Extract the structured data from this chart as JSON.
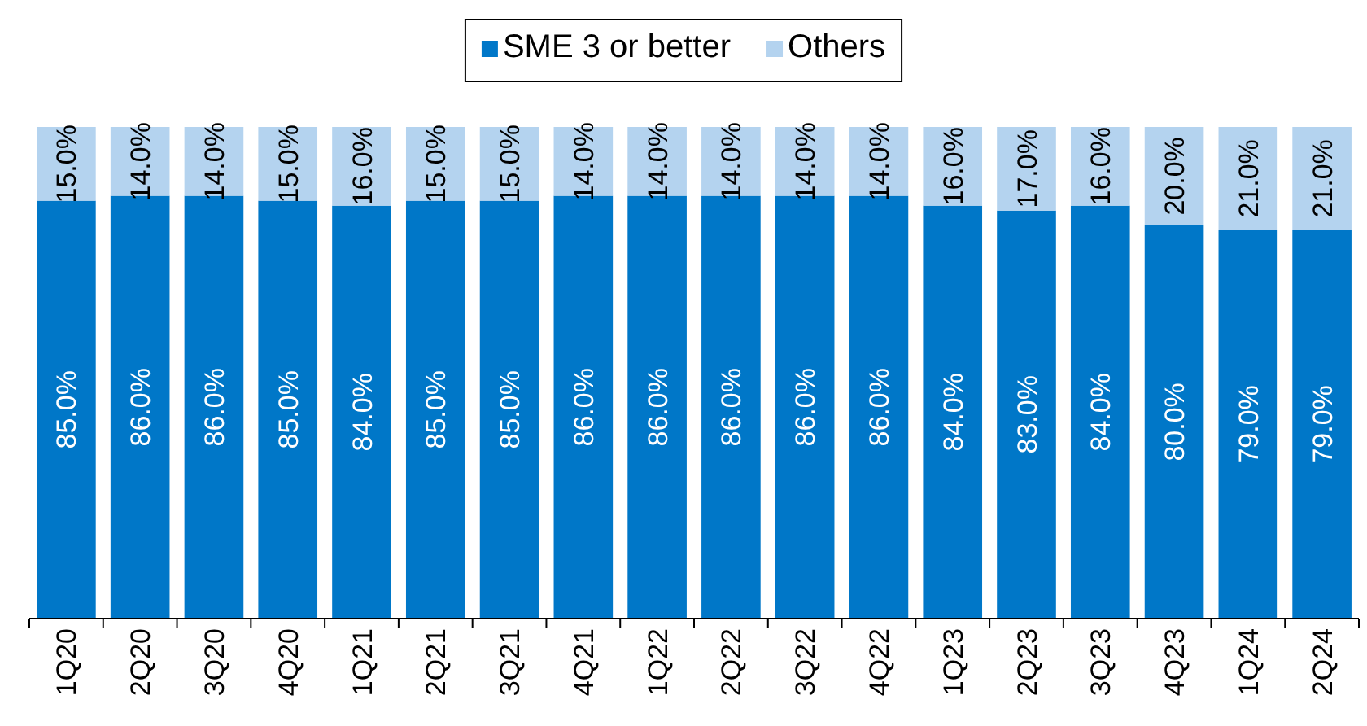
{
  "chart_data": {
    "type": "bar",
    "stacked": true,
    "legend": "top",
    "categories": [
      "1Q20",
      "2Q20",
      "3Q20",
      "4Q20",
      "1Q21",
      "2Q21",
      "3Q21",
      "4Q21",
      "1Q22",
      "2Q22",
      "3Q22",
      "4Q22",
      "1Q23",
      "2Q23",
      "3Q23",
      "4Q23",
      "1Q24",
      "2Q24"
    ],
    "series": [
      {
        "name": "SME 3 or better",
        "color": "#0077c8",
        "values": [
          85.0,
          86.0,
          86.0,
          85.0,
          84.0,
          85.0,
          85.0,
          86.0,
          86.0,
          86.0,
          86.0,
          86.0,
          84.0,
          83.0,
          84.0,
          80.0,
          79.0,
          79.0
        ],
        "value_labels": [
          "85.0%",
          "86.0%",
          "86.0%",
          "85.0%",
          "84.0%",
          "85.0%",
          "85.0%",
          "86.0%",
          "86.0%",
          "86.0%",
          "86.0%",
          "86.0%",
          "84.0%",
          "83.0%",
          "84.0%",
          "80.0%",
          "79.0%",
          "79.0%"
        ]
      },
      {
        "name": "Others",
        "color": "#b4d3ef",
        "values": [
          15.0,
          14.0,
          14.0,
          15.0,
          16.0,
          15.0,
          15.0,
          14.0,
          14.0,
          14.0,
          14.0,
          14.0,
          16.0,
          17.0,
          16.0,
          20.0,
          21.0,
          21.0
        ],
        "value_labels": [
          "15.0%",
          "14.0%",
          "14.0%",
          "15.0%",
          "16.0%",
          "15.0%",
          "15.0%",
          "14.0%",
          "14.0%",
          "14.0%",
          "14.0%",
          "14.0%",
          "16.0%",
          "17.0%",
          "16.0%",
          "20.0%",
          "21.0%",
          "21.0%"
        ]
      }
    ]
  }
}
